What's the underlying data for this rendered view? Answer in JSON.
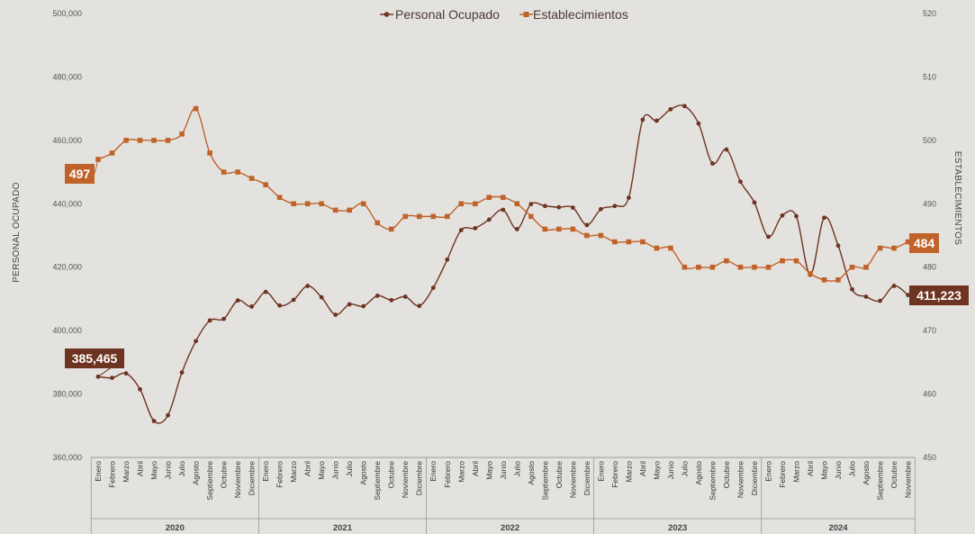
{
  "chart_data": {
    "type": "line",
    "title": "",
    "ylabel_left": "PERSONAL OCUPADO",
    "ylabel_right": "ESTABLECIMIENTOS",
    "ylim_left": [
      360000,
      500000
    ],
    "ylim_right": [
      450,
      520
    ],
    "yticks_left": [
      "360,000",
      "380,000",
      "400,000",
      "420,000",
      "440,000",
      "460,000",
      "480,000",
      "500,000"
    ],
    "yticks_right": [
      "450",
      "460",
      "470",
      "480",
      "490",
      "500",
      "510",
      "520"
    ],
    "legend_position": "top-center",
    "grid": false,
    "months": [
      "Enero",
      "Febrero",
      "Marzo",
      "Abril",
      "Mayo",
      "Junio",
      "Julio",
      "Agosto",
      "Septiembre",
      "Octubre",
      "Noviembre",
      "Diciembre"
    ],
    "years": [
      {
        "label": "2020",
        "months": 12
      },
      {
        "label": "2021",
        "months": 12
      },
      {
        "label": "2022",
        "months": 12
      },
      {
        "label": "2023",
        "months": 12
      },
      {
        "label": "2024",
        "months": 11
      }
    ],
    "series": [
      {
        "name": "Personal Ocupado",
        "axis": "left",
        "color": "#6e3422",
        "marker": "circle",
        "values": [
          385465,
          385100,
          386500,
          381500,
          371500,
          373300,
          386800,
          396700,
          403200,
          403700,
          409500,
          407600,
          412200,
          407900,
          409700,
          414100,
          410500,
          405000,
          408300,
          407700,
          411000,
          409600,
          410700,
          407800,
          413500,
          422400,
          431700,
          432300,
          435000,
          438100,
          432000,
          439900,
          439300,
          438900,
          438800,
          433300,
          438300,
          439300,
          441900,
          466500,
          466200,
          469800,
          470800,
          465300,
          452700,
          457100,
          447000,
          440400,
          429600,
          436300,
          436100,
          417600,
          435600,
          426800,
          413000,
          410700,
          409400,
          414100,
          411223
        ]
      },
      {
        "name": "Establecimientos",
        "axis": "right",
        "color": "#c0632a",
        "marker": "square",
        "values": [
          497,
          498,
          500,
          500,
          500,
          500,
          501,
          505,
          498,
          495,
          495,
          494,
          493,
          491,
          490,
          490,
          490,
          489,
          489,
          490,
          487,
          486,
          488,
          488,
          488,
          488,
          490,
          490,
          491,
          491,
          490,
          488,
          486,
          486,
          486,
          485,
          485,
          484,
          484,
          484,
          483,
          483,
          480,
          480,
          480,
          481,
          480,
          480,
          480,
          481,
          481,
          479,
          478,
          478,
          480,
          480,
          483,
          483,
          484
        ]
      }
    ],
    "annotations": [
      {
        "series": "Establecimientos",
        "position": "first",
        "text": "497"
      },
      {
        "series": "Personal Ocupado",
        "position": "first",
        "text": "385,465"
      },
      {
        "series": "Establecimientos",
        "position": "last",
        "text": "484"
      },
      {
        "series": "Personal Ocupado",
        "position": "last",
        "text": "411,223"
      }
    ]
  }
}
